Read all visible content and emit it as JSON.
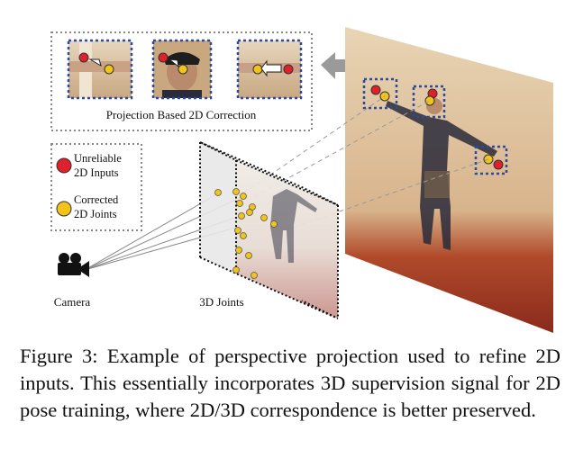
{
  "figure": {
    "top_panel_label": "Projection Based 2D Correction",
    "legend": {
      "unreliable_label": [
        "Unreliable",
        "2D Inputs"
      ],
      "corrected_label": [
        "Corrected",
        "2D Joints"
      ],
      "unreliable_color": "#e0202a",
      "corrected_color": "#f2c418"
    },
    "camera_label": "Camera",
    "joints_label": "3D Joints",
    "icons": [
      "camera-icon",
      "left-arrow-icon"
    ]
  },
  "caption": {
    "text": "Figure 3: Example of perspective projection used to refine 2D inputs. This essentially incorporates 3D supervision signal for 2D pose training, where 2D/3D correspondence is better preserved."
  }
}
